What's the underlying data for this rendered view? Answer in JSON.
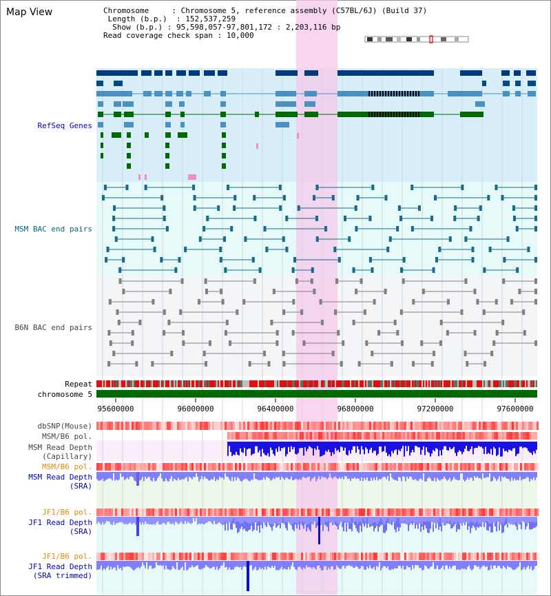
{
  "window": {
    "title": "Map View"
  },
  "info": {
    "chromosome_key": "Chromosome",
    "chromosome_val": "Chromosome 5, reference assembly (C57BL/6J) (Build 37)",
    "length_key": "Length (b.p.)",
    "length_val": "152,537,259",
    "show_key": "Show (b.p.)",
    "show_val": "95,598,057-97,801,172 : 2,203,116 bp",
    "span_key": "Read coverage check span",
    "span_val": "10,000"
  },
  "tracks": {
    "refseq": "RefSeq Genes",
    "msm_bac": "MSM BAC end pairs",
    "b6n_bac": "B6N BAC end pairs",
    "repeat": "Repeat",
    "chromosome": "chromosome 5",
    "dbsnp": "dbSNP(Mouse)",
    "msm_b6_pol": "MSM/B6 pol.",
    "msm_depth_cap_1": "MSM Read Depth",
    "msm_depth_cap_2": "(Capillary)",
    "msm_b6_pol_sra": "MSM/B6 pol.",
    "msm_depth_sra_1": "MSM Read Depth",
    "msm_depth_sra_2": "(SRA)",
    "jf1_b6_pol_1": "JF1/B6 pol.",
    "jf1_depth_sra_1": "JF1 Read Depth",
    "jf1_depth_sra_2": "(SRA)",
    "jf1_b6_pol_2": "JF1/B6 pol.",
    "jf1_depth_trim_1": "JF1 Read Depth",
    "jf1_depth_trim_2": "(SRA trimmed)"
  },
  "axis": {
    "ticks": [
      "95600000",
      "96000000",
      "96400000",
      "96800000",
      "97200000",
      "97600000"
    ]
  },
  "colors": {
    "refseq_bg": "#d8effa",
    "msm_bg": "#e6fafa",
    "b6n_bg": "#f4f5f7",
    "highlight": "#f6c8ea",
    "chromosome": "#006a00",
    "label_blue": "#0000b0",
    "label_teal": "#006a7a",
    "label_gray": "#444444",
    "label_orange": "#e08a00"
  }
}
